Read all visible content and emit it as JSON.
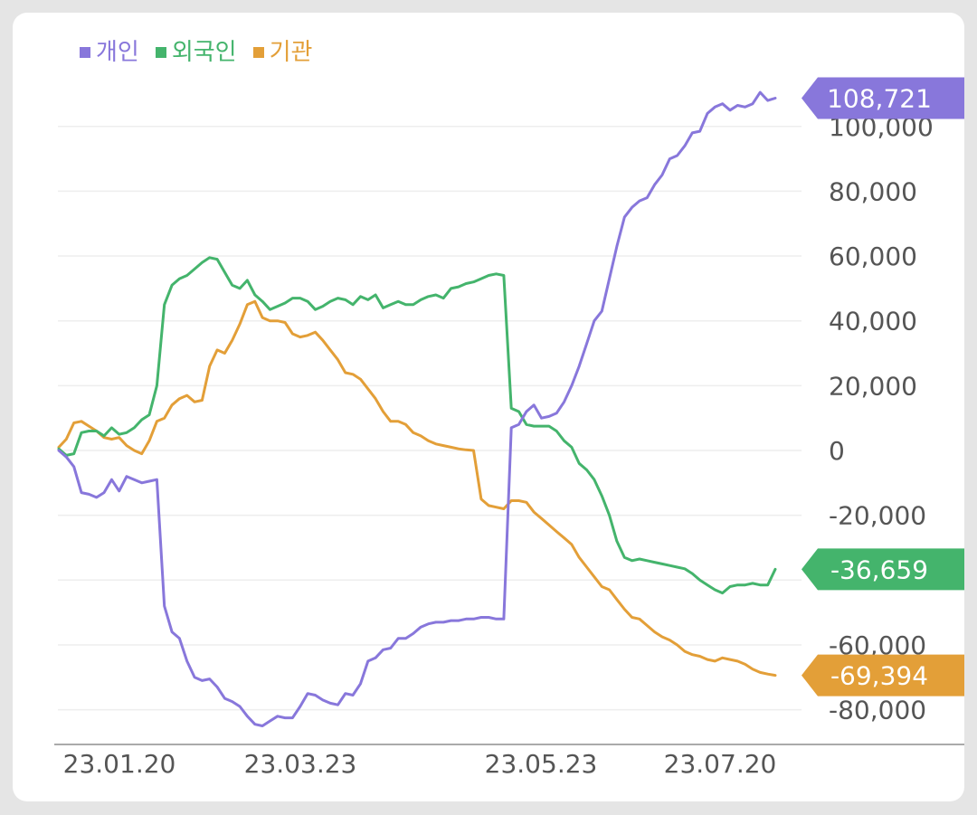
{
  "legend": [
    {
      "label": "개인",
      "color": "#8877db"
    },
    {
      "label": "외국인",
      "color": "#44b46c"
    },
    {
      "label": "기관",
      "color": "#e39f38"
    }
  ],
  "chart_data": {
    "type": "line",
    "title": "",
    "xlabel": "",
    "ylabel": "",
    "x_tick_labels": [
      "23.01.20",
      "23.03.23",
      "23.05.23",
      "23.07.20"
    ],
    "y_ticks": [
      100000,
      80000,
      60000,
      40000,
      20000,
      0,
      -20000,
      -40000,
      -60000,
      -80000
    ],
    "y_tick_labels": [
      "100,000",
      "80,000",
      "60,000",
      "40,000",
      "20,000",
      "0",
      "-20,000",
      "",
      "-60,000",
      "-80,000"
    ],
    "ylim": [
      -88000,
      112000
    ],
    "grid": true,
    "legend_position": "top-left",
    "series": [
      {
        "name": "개인",
        "color": "#8877db",
        "last_value": 108721,
        "last_value_label": "108,721",
        "values": [
          0,
          -2000,
          -5000,
          -13000,
          -13500,
          -14500,
          -13000,
          -9000,
          -12500,
          -8000,
          -9000,
          -10000,
          -9500,
          -9000,
          -48000,
          -56000,
          -58000,
          -65000,
          -70000,
          -71000,
          -70500,
          -73000,
          -76500,
          -77500,
          -79000,
          -82000,
          -84500,
          -85000,
          -83500,
          -82000,
          -82500,
          -82500,
          -79000,
          -75000,
          -75500,
          -77000,
          -78000,
          -78500,
          -75000,
          -75500,
          -72000,
          -65000,
          -64000,
          -61500,
          -61000,
          -58000,
          -58000,
          -56500,
          -54500,
          -53500,
          -53000,
          -53000,
          -52500,
          -52500,
          -52000,
          -52000,
          -51500,
          -51500,
          -52000,
          -52000,
          7000,
          8000,
          12000,
          14000,
          10000,
          10500,
          11500,
          15000,
          20000,
          26000,
          33000,
          40000,
          43000,
          53000,
          63000,
          72000,
          75000,
          77000,
          78000,
          82000,
          85000,
          90000,
          91000,
          94000,
          98000,
          98500,
          104000,
          106000,
          107000,
          105000,
          106500,
          106000,
          107000,
          110500,
          108000,
          108721
        ]
      },
      {
        "name": "외국인",
        "color": "#44b46c",
        "last_value": -36659,
        "last_value_label": "-36,659",
        "values": [
          500,
          -1500,
          -1000,
          5500,
          6000,
          6000,
          4500,
          7000,
          5000,
          5500,
          7000,
          9500,
          11000,
          20000,
          45000,
          51000,
          53000,
          54000,
          56000,
          58000,
          59500,
          59000,
          55000,
          51000,
          50000,
          52500,
          48000,
          46000,
          43500,
          44500,
          45500,
          47000,
          47000,
          46000,
          43500,
          44500,
          46000,
          47000,
          46500,
          45000,
          47500,
          46500,
          48000,
          44000,
          45000,
          46000,
          45000,
          45000,
          46500,
          47500,
          48000,
          47000,
          50000,
          50500,
          51500,
          52000,
          53000,
          54000,
          54500,
          54000,
          13000,
          12000,
          8000,
          7500,
          7500,
          7500,
          6000,
          3000,
          1000,
          -4000,
          -6000,
          -9000,
          -14000,
          -20000,
          -28000,
          -33000,
          -34000,
          -33500,
          -34000,
          -34500,
          -35000,
          -35500,
          -36000,
          -36500,
          -38000,
          -40000,
          -41500,
          -43000,
          -44000,
          -42000,
          -41500,
          -41500,
          -41000,
          -41500,
          -41500,
          -36659
        ]
      },
      {
        "name": "기관",
        "color": "#e39f38",
        "last_value": -69394,
        "last_value_label": "-69,394",
        "values": [
          1000,
          3500,
          8500,
          9000,
          7500,
          6000,
          4000,
          3500,
          4000,
          1500,
          0,
          -1000,
          3000,
          9000,
          10000,
          14000,
          16000,
          17000,
          15000,
          15500,
          26000,
          31000,
          30000,
          34000,
          39000,
          45000,
          46000,
          41000,
          40000,
          40000,
          39500,
          36000,
          35000,
          35500,
          36500,
          34000,
          31000,
          28000,
          24000,
          23500,
          22000,
          19000,
          16000,
          12000,
          9000,
          9000,
          8000,
          5500,
          4500,
          3000,
          2000,
          1500,
          1000,
          500,
          200,
          0,
          -15000,
          -17000,
          -17500,
          -18000,
          -15500,
          -15500,
          -16000,
          -19000,
          -21000,
          -23000,
          -25000,
          -27000,
          -29000,
          -33000,
          -36000,
          -39000,
          -42000,
          -43000,
          -46000,
          -49000,
          -51500,
          -52000,
          -54000,
          -56000,
          -57500,
          -58500,
          -60000,
          -62000,
          -63000,
          -63500,
          -64500,
          -65000,
          -64000,
          -64500,
          -65000,
          -66000,
          -67500,
          -68500,
          -69000,
          -69394
        ]
      }
    ]
  }
}
